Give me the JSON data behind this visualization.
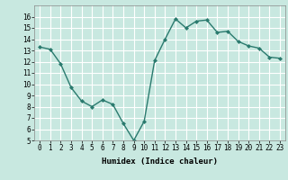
{
  "x": [
    0,
    1,
    2,
    3,
    4,
    5,
    6,
    7,
    8,
    9,
    10,
    11,
    12,
    13,
    14,
    15,
    16,
    17,
    18,
    19,
    20,
    21,
    22,
    23
  ],
  "y": [
    13.3,
    13.1,
    11.8,
    9.7,
    8.5,
    8.0,
    8.6,
    8.2,
    6.5,
    5.0,
    6.7,
    12.1,
    14.0,
    15.8,
    15.0,
    15.6,
    15.7,
    14.6,
    14.7,
    13.8,
    13.4,
    13.2,
    12.4,
    12.3
  ],
  "line_color": "#2a7a6e",
  "marker": "D",
  "marker_size": 2,
  "bg_color": "#c8e8e0",
  "grid_color": "#ffffff",
  "xlabel": "Humidex (Indice chaleur)",
  "xlim": [
    -0.5,
    23.5
  ],
  "ylim": [
    5,
    17
  ],
  "yticks": [
    5,
    6,
    7,
    8,
    9,
    10,
    11,
    12,
    13,
    14,
    15,
    16
  ],
  "xticks": [
    0,
    1,
    2,
    3,
    4,
    5,
    6,
    7,
    8,
    9,
    10,
    11,
    12,
    13,
    14,
    15,
    16,
    17,
    18,
    19,
    20,
    21,
    22,
    23
  ],
  "tick_fontsize": 5.5,
  "label_fontsize": 6.5,
  "line_width": 1.0
}
